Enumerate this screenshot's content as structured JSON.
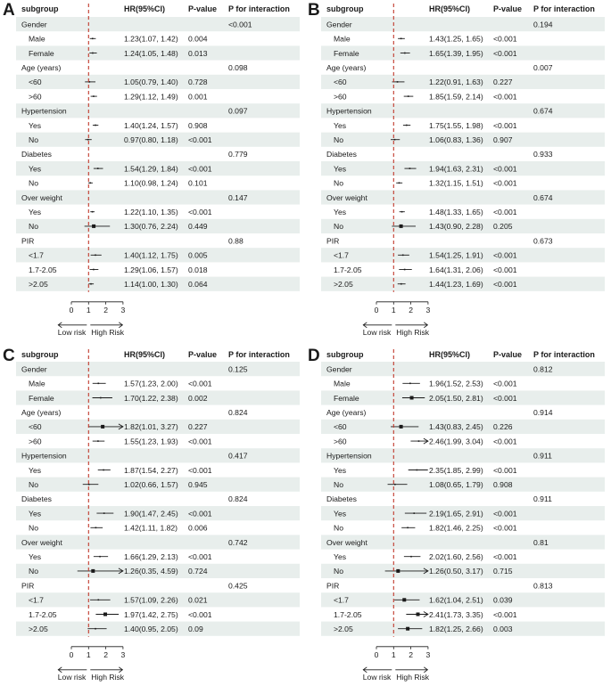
{
  "chart_data": [
    {
      "type": "forest",
      "panel_label": "A",
      "columns": [
        "subgroup",
        "HR(95%CI)",
        "P-value",
        "P for interaction"
      ],
      "xlim": [
        0,
        3
      ],
      "xticks": [
        "0",
        "1",
        "2",
        "3"
      ],
      "reference_line": 1,
      "arrow_labels": {
        "left": "Low risk",
        "right": "High Risk"
      },
      "rows": [
        {
          "label": "Gender",
          "header": true,
          "p_interaction": "<0.001"
        },
        {
          "label": "Male",
          "hr": 1.23,
          "lo": 1.07,
          "hi": 1.42,
          "hr_text": "1.23(1.07, 1.42)",
          "p": "0.004"
        },
        {
          "label": "Female",
          "hr": 1.24,
          "lo": 1.05,
          "hi": 1.48,
          "hr_text": "1.24(1.05, 1.48)",
          "p": "0.013"
        },
        {
          "label": "Age (years)",
          "header": true,
          "p_interaction": "0.098"
        },
        {
          "label": "<60",
          "hr": 1.05,
          "lo": 0.79,
          "hi": 1.4,
          "hr_text": "1.05(0.79, 1.40)",
          "p": "0.728"
        },
        {
          "label": ">60",
          "hr": 1.29,
          "lo": 1.12,
          "hi": 1.49,
          "hr_text": "1.29(1.12, 1.49)",
          "p": "0.001"
        },
        {
          "label": "Hypertension",
          "header": true,
          "p_interaction": "0.097"
        },
        {
          "label": "Yes",
          "hr": 1.4,
          "lo": 1.24,
          "hi": 1.57,
          "hr_text": "1.40(1.24, 1.57)",
          "p": "0.908"
        },
        {
          "label": "No",
          "hr": 0.97,
          "lo": 0.8,
          "hi": 1.18,
          "hr_text": "0.97(0.80, 1.18)",
          "p": "<0.001"
        },
        {
          "label": "Diabetes",
          "header": true,
          "p_interaction": "0.779"
        },
        {
          "label": "Yes",
          "hr": 1.54,
          "lo": 1.29,
          "hi": 1.84,
          "hr_text": "1.54(1.29, 1.84)",
          "p": "<0.001"
        },
        {
          "label": "No",
          "hr": 1.1,
          "lo": 0.98,
          "hi": 1.24,
          "hr_text": "1.10(0.98, 1.24)",
          "p": "0.101"
        },
        {
          "label": "Over weight",
          "header": true,
          "p_interaction": "0.147"
        },
        {
          "label": "Yes",
          "hr": 1.22,
          "lo": 1.1,
          "hi": 1.35,
          "hr_text": "1.22(1.10, 1.35)",
          "p": "<0.001"
        },
        {
          "label": "No",
          "hr": 1.3,
          "lo": 0.76,
          "hi": 2.24,
          "hr_text": "1.30(0.76, 2.24)",
          "p": "0.449"
        },
        {
          "label": "PIR",
          "header": true,
          "p_interaction": "0.88"
        },
        {
          "label": "<1.7",
          "hr": 1.4,
          "lo": 1.12,
          "hi": 1.75,
          "hr_text": "1.40(1.12, 1.75)",
          "p": "0.005"
        },
        {
          "label": "1.7-2.05",
          "hr": 1.29,
          "lo": 1.06,
          "hi": 1.57,
          "hr_text": "1.29(1.06, 1.57)",
          "p": "0.018"
        },
        {
          "label": ">2.05",
          "hr": 1.14,
          "lo": 1.0,
          "hi": 1.3,
          "hr_text": "1.14(1.00, 1.30)",
          "p": "0.064"
        }
      ]
    },
    {
      "type": "forest",
      "panel_label": "B",
      "columns": [
        "subgroup",
        "HR(95%CI)",
        "P-value",
        "P for interaction"
      ],
      "xlim": [
        0,
        3
      ],
      "xticks": [
        "0",
        "1",
        "2",
        "3"
      ],
      "reference_line": 1,
      "arrow_labels": {
        "left": "Low risk",
        "right": "High Risk"
      },
      "rows": [
        {
          "label": "Gender",
          "header": true,
          "p_interaction": "0.194"
        },
        {
          "label": "Male",
          "hr": 1.43,
          "lo": 1.25,
          "hi": 1.65,
          "hr_text": "1.43(1.25, 1.65)",
          "p": "<0.001"
        },
        {
          "label": "Female",
          "hr": 1.65,
          "lo": 1.39,
          "hi": 1.95,
          "hr_text": "1.65(1.39, 1.95)",
          "p": "<0.001"
        },
        {
          "label": "Age (years)",
          "header": true,
          "p_interaction": "0.007"
        },
        {
          "label": "<60",
          "hr": 1.22,
          "lo": 0.91,
          "hi": 1.63,
          "hr_text": "1.22(0.91, 1.63)",
          "p": "0.227"
        },
        {
          "label": ">60",
          "hr": 1.85,
          "lo": 1.59,
          "hi": 2.14,
          "hr_text": "1.85(1.59, 2.14)",
          "p": "<0.001"
        },
        {
          "label": "Hypertension",
          "header": true,
          "p_interaction": "0.674"
        },
        {
          "label": "Yes",
          "hr": 1.75,
          "lo": 1.55,
          "hi": 1.98,
          "hr_text": "1.75(1.55, 1.98)",
          "p": "<0.001"
        },
        {
          "label": "No",
          "hr": 1.06,
          "lo": 0.83,
          "hi": 1.36,
          "hr_text": "1.06(0.83, 1.36)",
          "p": "0.907"
        },
        {
          "label": "Diabetes",
          "header": true,
          "p_interaction": "0.933"
        },
        {
          "label": "Yes",
          "hr": 1.94,
          "lo": 1.63,
          "hi": 2.31,
          "hr_text": "1.94(1.63, 2.31)",
          "p": "<0.001"
        },
        {
          "label": "No",
          "hr": 1.32,
          "lo": 1.15,
          "hi": 1.51,
          "hr_text": "1.32(1.15, 1.51)",
          "p": "<0.001"
        },
        {
          "label": "Over weight",
          "header": true,
          "p_interaction": "0.674"
        },
        {
          "label": "Yes",
          "hr": 1.48,
          "lo": 1.33,
          "hi": 1.65,
          "hr_text": "1.48(1.33, 1.65)",
          "p": "<0.001"
        },
        {
          "label": "No",
          "hr": 1.43,
          "lo": 0.9,
          "hi": 2.28,
          "hr_text": "1.43(0.90, 2.28)",
          "p": "0.205"
        },
        {
          "label": "PIR",
          "header": true,
          "p_interaction": "0.673"
        },
        {
          "label": "<1.7",
          "hr": 1.54,
          "lo": 1.25,
          "hi": 1.91,
          "hr_text": "1.54(1.25, 1.91)",
          "p": "<0.001"
        },
        {
          "label": "1.7-2.05",
          "hr": 1.64,
          "lo": 1.31,
          "hi": 2.06,
          "hr_text": "1.64(1.31, 2.06)",
          "p": "<0.001"
        },
        {
          "label": ">2.05",
          "hr": 1.44,
          "lo": 1.23,
          "hi": 1.69,
          "hr_text": "1.44(1.23, 1.69)",
          "p": "<0.001"
        }
      ]
    },
    {
      "type": "forest",
      "panel_label": "C",
      "columns": [
        "subgroup",
        "HR(95%CI)",
        "P-value",
        "P for interaction"
      ],
      "xlim": [
        0,
        3
      ],
      "xticks": [
        "0",
        "1",
        "2",
        "3"
      ],
      "reference_line": 1,
      "arrow_labels": {
        "left": "Low risk",
        "right": "High Risk"
      },
      "rows": [
        {
          "label": "Gender",
          "header": true,
          "p_interaction": "0.125"
        },
        {
          "label": "Male",
          "hr": 1.57,
          "lo": 1.23,
          "hi": 2.0,
          "hr_text": "1.57(1.23, 2.00)",
          "p": "<0.001"
        },
        {
          "label": "Female",
          "hr": 1.7,
          "lo": 1.22,
          "hi": 2.38,
          "hr_text": "1.70(1.22, 2.38)",
          "p": "0.002"
        },
        {
          "label": "Age (years)",
          "header": true,
          "p_interaction": "0.824"
        },
        {
          "label": "<60",
          "hr": 1.82,
          "lo": 1.01,
          "hi": 3.27,
          "hr_text": "1.82(1.01, 3.27)",
          "p": "0.227"
        },
        {
          "label": ">60",
          "hr": 1.55,
          "lo": 1.23,
          "hi": 1.93,
          "hr_text": "1.55(1.23, 1.93)",
          "p": "<0.001"
        },
        {
          "label": "Hypertension",
          "header": true,
          "p_interaction": "0.417"
        },
        {
          "label": "Yes",
          "hr": 1.87,
          "lo": 1.54,
          "hi": 2.27,
          "hr_text": "1.87(1.54, 2.27)",
          "p": "<0.001"
        },
        {
          "label": "No",
          "hr": 1.02,
          "lo": 0.66,
          "hi": 1.57,
          "hr_text": "1.02(0.66, 1.57)",
          "p": "0.945"
        },
        {
          "label": "Diabetes",
          "header": true,
          "p_interaction": "0.824"
        },
        {
          "label": "Yes",
          "hr": 1.9,
          "lo": 1.47,
          "hi": 2.45,
          "hr_text": "1.90(1.47, 2.45)",
          "p": "<0.001"
        },
        {
          "label": "No",
          "hr": 1.42,
          "lo": 1.11,
          "hi": 1.82,
          "hr_text": "1.42(1.11, 1.82)",
          "p": "0.006"
        },
        {
          "label": "Over weight",
          "header": true,
          "p_interaction": "0.742"
        },
        {
          "label": "Yes",
          "hr": 1.66,
          "lo": 1.29,
          "hi": 2.13,
          "hr_text": "1.66(1.29, 2.13)",
          "p": "<0.001"
        },
        {
          "label": "No",
          "hr": 1.26,
          "lo": 0.35,
          "hi": 4.59,
          "hr_text": "1.26(0.35, 4.59)",
          "p": "0.724"
        },
        {
          "label": "PIR",
          "header": true,
          "p_interaction": "0.425"
        },
        {
          "label": "<1.7",
          "hr": 1.57,
          "lo": 1.09,
          "hi": 2.26,
          "hr_text": "1.57(1.09, 2.26)",
          "p": "0.021"
        },
        {
          "label": "1.7-2.05",
          "hr": 1.97,
          "lo": 1.42,
          "hi": 2.75,
          "hr_text": "1.97(1.42, 2.75)",
          "p": "<0.001"
        },
        {
          "label": ">2.05",
          "hr": 1.4,
          "lo": 0.95,
          "hi": 2.05,
          "hr_text": "1.40(0.95, 2.05)",
          "p": "0.09"
        }
      ]
    },
    {
      "type": "forest",
      "panel_label": "D",
      "columns": [
        "subgroup",
        "HR(95%CI)",
        "P-value",
        "P for interaction"
      ],
      "xlim": [
        0,
        3
      ],
      "xticks": [
        "0",
        "1",
        "2",
        "3"
      ],
      "reference_line": 1,
      "arrow_labels": {
        "left": "Low risk",
        "right": "High Risk"
      },
      "rows": [
        {
          "label": "Gender",
          "header": true,
          "p_interaction": "0.812"
        },
        {
          "label": "Male",
          "hr": 1.96,
          "lo": 1.52,
          "hi": 2.53,
          "hr_text": "1.96(1.52, 2.53)",
          "p": "<0.001"
        },
        {
          "label": "Female",
          "hr": 2.05,
          "lo": 1.5,
          "hi": 2.81,
          "hr_text": "2.05(1.50, 2.81)",
          "p": "<0.001"
        },
        {
          "label": "Age (years)",
          "header": true,
          "p_interaction": "0.914"
        },
        {
          "label": "<60",
          "hr": 1.43,
          "lo": 0.83,
          "hi": 2.45,
          "hr_text": "1.43(0.83, 2.45)",
          "p": "0.226"
        },
        {
          "label": ">60",
          "hr": 2.46,
          "lo": 1.99,
          "hi": 3.04,
          "hr_text": "2.46(1.99, 3.04)",
          "p": "<0.001"
        },
        {
          "label": "Hypertension",
          "header": true,
          "p_interaction": "0.911"
        },
        {
          "label": "Yes",
          "hr": 2.35,
          "lo": 1.85,
          "hi": 2.99,
          "hr_text": "2.35(1.85, 2.99)",
          "p": "<0.001"
        },
        {
          "label": "No",
          "hr": 1.08,
          "lo": 0.65,
          "hi": 1.79,
          "hr_text": "1.08(0.65, 1.79)",
          "p": "0.908"
        },
        {
          "label": "Diabetes",
          "header": true,
          "p_interaction": "0.911"
        },
        {
          "label": "Yes",
          "hr": 2.19,
          "lo": 1.65,
          "hi": 2.91,
          "hr_text": "2.19(1.65, 2.91)",
          "p": "<0.001"
        },
        {
          "label": "No",
          "hr": 1.82,
          "lo": 1.46,
          "hi": 2.25,
          "hr_text": "1.82(1.46, 2.25)",
          "p": "<0.001"
        },
        {
          "label": "Over weight",
          "header": true,
          "p_interaction": "0.81"
        },
        {
          "label": "Yes",
          "hr": 2.02,
          "lo": 1.6,
          "hi": 2.56,
          "hr_text": "2.02(1.60, 2.56)",
          "p": "<0.001"
        },
        {
          "label": "No",
          "hr": 1.26,
          "lo": 0.5,
          "hi": 3.17,
          "hr_text": "1.26(0.50, 3.17)",
          "p": "0.715"
        },
        {
          "label": "PIR",
          "header": true,
          "p_interaction": "0.813"
        },
        {
          "label": "<1.7",
          "hr": 1.62,
          "lo": 1.04,
          "hi": 2.51,
          "hr_text": "1.62(1.04, 2.51)",
          "p": "0.039"
        },
        {
          "label": "1.7-2.05",
          "hr": 2.41,
          "lo": 1.73,
          "hi": 3.35,
          "hr_text": "2.41(1.73, 3.35)",
          "p": "<0.001"
        },
        {
          "label": ">2.05",
          "hr": 1.82,
          "lo": 1.25,
          "hi": 2.66,
          "hr_text": "1.82(1.25, 2.66)",
          "p": "0.003"
        }
      ]
    }
  ],
  "colors": {
    "stripe": "#e8eeec",
    "reference_line": "#c0392b",
    "ink": "#1a1a1a"
  }
}
